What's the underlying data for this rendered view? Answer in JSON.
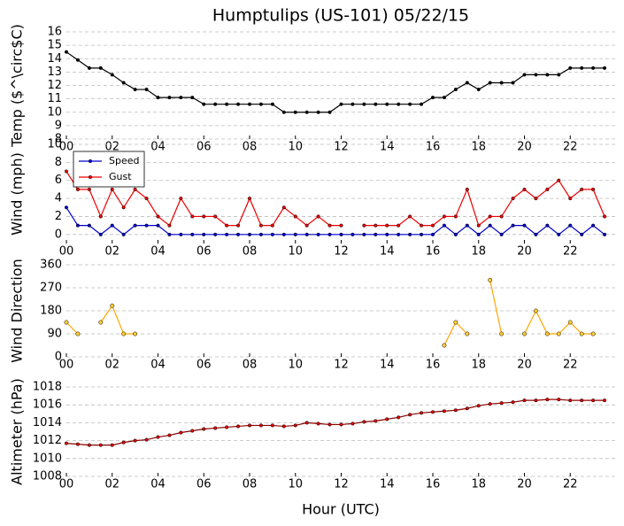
{
  "chart_data": [
    {
      "type": "line",
      "title": "Humptulips (US-101) 05/22/15",
      "ylabel": "Temp ($^\\circ$C)",
      "x": [
        0,
        0.5,
        1,
        1.5,
        2,
        2.5,
        3,
        3.5,
        4,
        4.5,
        5,
        5.5,
        6,
        6.5,
        7,
        7.5,
        8,
        8.5,
        9,
        9.5,
        10,
        10.5,
        11,
        11.5,
        12,
        12.5,
        13,
        13.5,
        14,
        14.5,
        15,
        15.5,
        16,
        16.5,
        17,
        17.5,
        18,
        18.5,
        19,
        19.5,
        20,
        20.5,
        21,
        21.5,
        22,
        22.5,
        23,
        23.5
      ],
      "series": [
        {
          "name": "Temp",
          "color": "#000000",
          "values": [
            14.5,
            13.9,
            13.3,
            13.3,
            12.8,
            12.2,
            11.7,
            11.7,
            11.1,
            11.1,
            11.1,
            11.1,
            10.6,
            10.6,
            10.6,
            10.6,
            10.6,
            10.6,
            10.6,
            10.0,
            10.0,
            10.0,
            10.0,
            10.0,
            10.6,
            10.6,
            10.6,
            10.6,
            10.6,
            10.6,
            10.6,
            10.6,
            11.1,
            11.1,
            11.7,
            12.2,
            11.7,
            12.2,
            12.2,
            12.2,
            12.8,
            12.8,
            12.8,
            12.8,
            13.3,
            13.3,
            13.3,
            13.3
          ]
        }
      ],
      "xlim": [
        0,
        24
      ],
      "xticks": [
        {
          "value": 0,
          "label": "00"
        },
        {
          "value": 2,
          "label": "02"
        },
        {
          "value": 4,
          "label": "04"
        },
        {
          "value": 6,
          "label": "06"
        },
        {
          "value": 8,
          "label": "08"
        },
        {
          "value": 10,
          "label": "10"
        },
        {
          "value": 12,
          "label": "12"
        },
        {
          "value": 14,
          "label": "14"
        },
        {
          "value": 16,
          "label": "16"
        },
        {
          "value": 18,
          "label": "18"
        },
        {
          "value": 20,
          "label": "20"
        },
        {
          "value": 22,
          "label": "22"
        }
      ],
      "ylim": [
        8,
        16
      ],
      "yticks": [
        8,
        9,
        10,
        11,
        12,
        13,
        14,
        15,
        16
      ],
      "grid": true
    },
    {
      "type": "line",
      "ylabel": "Wind (mph)",
      "legend": "upper left",
      "x": [
        0,
        0.5,
        1,
        1.5,
        2,
        2.5,
        3,
        3.5,
        4,
        4.5,
        5,
        5.5,
        6,
        6.5,
        7,
        7.5,
        8,
        8.5,
        9,
        9.5,
        10,
        10.5,
        11,
        11.5,
        12,
        12.5,
        13,
        13.5,
        14,
        14.5,
        15,
        15.5,
        16,
        16.5,
        17,
        17.5,
        18,
        18.5,
        19,
        19.5,
        20,
        20.5,
        21,
        21.5,
        22,
        22.5,
        23,
        23.5
      ],
      "series": [
        {
          "name": "Speed",
          "color": "#0000cc",
          "values": [
            3,
            1,
            1,
            0,
            1,
            0,
            1,
            1,
            1,
            0,
            0,
            0,
            0,
            0,
            0,
            0,
            0,
            0,
            0,
            0,
            0,
            0,
            0,
            0,
            0,
            0,
            0,
            0,
            0,
            0,
            0,
            0,
            0,
            1,
            0,
            1,
            0,
            1,
            0,
            1,
            1,
            0,
            1,
            0,
            1,
            0,
            1,
            0
          ]
        },
        {
          "name": "Gust",
          "color": "#ee0000",
          "values": [
            7,
            5,
            5,
            2,
            5,
            3,
            5,
            4,
            2,
            1,
            4,
            2,
            2,
            2,
            1,
            1,
            4,
            1,
            1,
            3,
            2,
            1,
            2,
            1,
            1,
            null,
            1,
            1,
            1,
            1,
            2,
            1,
            1,
            2,
            2,
            5,
            1,
            2,
            2,
            4,
            5,
            4,
            5,
            6,
            4,
            5,
            5,
            2
          ]
        }
      ],
      "xlim": [
        0,
        24
      ],
      "xticks": [
        {
          "value": 0,
          "label": "00"
        },
        {
          "value": 2,
          "label": "02"
        },
        {
          "value": 4,
          "label": "04"
        },
        {
          "value": 6,
          "label": "06"
        },
        {
          "value": 8,
          "label": "08"
        },
        {
          "value": 10,
          "label": "10"
        },
        {
          "value": 12,
          "label": "12"
        },
        {
          "value": 14,
          "label": "14"
        },
        {
          "value": 16,
          "label": "16"
        },
        {
          "value": 18,
          "label": "18"
        },
        {
          "value": 20,
          "label": "20"
        },
        {
          "value": 22,
          "label": "22"
        }
      ],
      "ylim": [
        -1,
        10
      ],
      "yticks": [
        0,
        2,
        4,
        6,
        8,
        10
      ],
      "grid": true
    },
    {
      "type": "line",
      "ylabel": "Wind Direction",
      "x": [
        0,
        0.5,
        1,
        1.5,
        2,
        2.5,
        3,
        3.5,
        4,
        4.5,
        5,
        5.5,
        6,
        6.5,
        7,
        7.5,
        8,
        8.5,
        9,
        9.5,
        10,
        10.5,
        11,
        11.5,
        12,
        12.5,
        13,
        13.5,
        14,
        14.5,
        15,
        15.5,
        16,
        16.5,
        17,
        17.5,
        18,
        18.5,
        19,
        19.5,
        20,
        20.5,
        21,
        21.5,
        22,
        22.5,
        23,
        23.5
      ],
      "series": [
        {
          "name": "Direction",
          "color": "#ffa500",
          "values": [
            135,
            90,
            null,
            135,
            200,
            90,
            90,
            null,
            null,
            null,
            null,
            null,
            null,
            null,
            null,
            null,
            null,
            null,
            null,
            null,
            null,
            null,
            null,
            null,
            null,
            null,
            null,
            null,
            null,
            null,
            null,
            null,
            null,
            45,
            135,
            90,
            null,
            300,
            90,
            null,
            90,
            180,
            90,
            90,
            135,
            90,
            90,
            null
          ]
        }
      ],
      "xlim": [
        0,
        24
      ],
      "xticks": [
        {
          "value": 0,
          "label": "00"
        },
        {
          "value": 2,
          "label": "02"
        },
        {
          "value": 4,
          "label": "04"
        },
        {
          "value": 6,
          "label": "06"
        },
        {
          "value": 8,
          "label": "08"
        },
        {
          "value": 10,
          "label": "10"
        },
        {
          "value": 12,
          "label": "12"
        },
        {
          "value": 14,
          "label": "14"
        },
        {
          "value": 16,
          "label": "16"
        },
        {
          "value": 18,
          "label": "18"
        },
        {
          "value": 20,
          "label": "20"
        },
        {
          "value": 22,
          "label": "22"
        }
      ],
      "ylim": [
        0,
        360
      ],
      "yticks": [
        0,
        90,
        180,
        270,
        360
      ],
      "grid": true
    },
    {
      "type": "line",
      "ylabel": "Altimeter (hPa)",
      "xlabel": "Hour (UTC)",
      "x": [
        0,
        0.5,
        1,
        1.5,
        2,
        2.5,
        3,
        3.5,
        4,
        4.5,
        5,
        5.5,
        6,
        6.5,
        7,
        7.5,
        8,
        8.5,
        9,
        9.5,
        10,
        10.5,
        11,
        11.5,
        12,
        12.5,
        13,
        13.5,
        14,
        14.5,
        15,
        15.5,
        16,
        16.5,
        17,
        17.5,
        18,
        18.5,
        19,
        19.5,
        20,
        20.5,
        21,
        21.5,
        22,
        22.5,
        23,
        23.5
      ],
      "series": [
        {
          "name": "Altimeter",
          "color": "#8b0000",
          "values": [
            1011.7,
            1011.6,
            1011.5,
            1011.5,
            1011.5,
            1011.8,
            1012.0,
            1012.1,
            1012.4,
            1012.6,
            1012.9,
            1013.1,
            1013.3,
            1013.4,
            1013.5,
            1013.6,
            1013.7,
            1013.7,
            1013.7,
            1013.6,
            1013.7,
            1014.0,
            1013.9,
            1013.8,
            1013.8,
            1013.9,
            1014.1,
            1014.2,
            1014.4,
            1014.6,
            1014.9,
            1015.1,
            1015.2,
            1015.3,
            1015.4,
            1015.6,
            1015.9,
            1016.1,
            1016.2,
            1016.3,
            1016.5,
            1016.5,
            1016.6,
            1016.6,
            1016.5,
            1016.5,
            1016.5,
            1016.5
          ]
        }
      ],
      "xlim": [
        0,
        24
      ],
      "xticks": [
        {
          "value": 0,
          "label": "00"
        },
        {
          "value": 2,
          "label": "02"
        },
        {
          "value": 4,
          "label": "04"
        },
        {
          "value": 6,
          "label": "06"
        },
        {
          "value": 8,
          "label": "08"
        },
        {
          "value": 10,
          "label": "10"
        },
        {
          "value": 12,
          "label": "12"
        },
        {
          "value": 14,
          "label": "14"
        },
        {
          "value": 16,
          "label": "16"
        },
        {
          "value": 18,
          "label": "18"
        },
        {
          "value": 20,
          "label": "20"
        },
        {
          "value": 22,
          "label": "22"
        }
      ],
      "ylim": [
        1008,
        1018
      ],
      "yticks": [
        1008,
        1010,
        1012,
        1014,
        1016,
        1018
      ],
      "grid": true
    }
  ]
}
